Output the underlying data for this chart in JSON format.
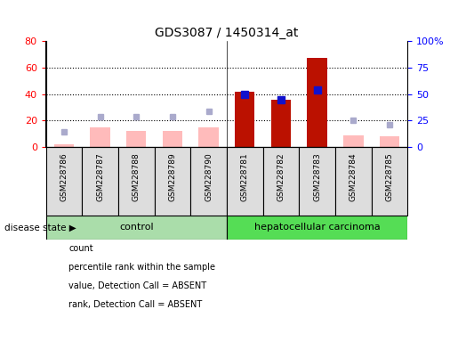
{
  "title": "GDS3087 / 1450314_at",
  "samples": [
    "GSM228786",
    "GSM228787",
    "GSM228788",
    "GSM228789",
    "GSM228790",
    "GSM228781",
    "GSM228782",
    "GSM228783",
    "GSM228784",
    "GSM228785"
  ],
  "count": [
    null,
    null,
    null,
    null,
    null,
    42,
    36,
    67,
    null,
    null
  ],
  "percentile_rank": [
    null,
    null,
    null,
    null,
    null,
    50,
    45,
    54,
    null,
    null
  ],
  "value_absent": [
    2,
    15,
    12,
    12,
    15,
    null,
    null,
    null,
    9,
    8
  ],
  "rank_absent": [
    14,
    29,
    29,
    29,
    34,
    null,
    null,
    null,
    25,
    21
  ],
  "ylim_left": [
    0,
    80
  ],
  "ylim_right": [
    0,
    100
  ],
  "yticks_left": [
    0,
    20,
    40,
    60,
    80
  ],
  "ytick_labels_left": [
    "0",
    "20",
    "40",
    "60",
    "80"
  ],
  "yticks_right": [
    0,
    25,
    50,
    75,
    100
  ],
  "ytick_labels_right": [
    "0",
    "25",
    "50",
    "75",
    "100%"
  ],
  "bar_color_red": "#bb1100",
  "bar_color_pink": "#ffbbbb",
  "dot_color_blue": "#1111cc",
  "dot_color_lightblue": "#aaaacc",
  "group_control_color": "#aaddaa",
  "group_cancer_color": "#55dd55",
  "legend_items": [
    {
      "color": "#bb1100",
      "label": "count"
    },
    {
      "color": "#1111cc",
      "label": "percentile rank within the sample"
    },
    {
      "color": "#ffbbbb",
      "label": "value, Detection Call = ABSENT"
    },
    {
      "color": "#aaaacc",
      "label": "rank, Detection Call = ABSENT"
    }
  ],
  "disease_state_label": "disease state",
  "control_label": "control",
  "cancer_label": "hepatocellular carcinoma",
  "sample_box_color": "#dddddd",
  "plot_bg_color": "#ffffff",
  "fig_bg_color": "#ffffff"
}
